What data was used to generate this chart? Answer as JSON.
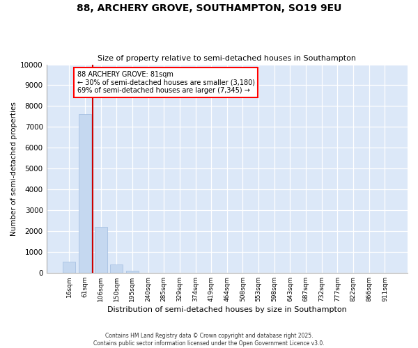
{
  "title1": "88, ARCHERY GROVE, SOUTHAMPTON, SO19 9EU",
  "title2": "Size of property relative to semi-detached houses in Southampton",
  "xlabel": "Distribution of semi-detached houses by size in Southampton",
  "ylabel": "Number of semi-detached properties",
  "categories": [
    "16sqm",
    "61sqm",
    "106sqm",
    "150sqm",
    "195sqm",
    "240sqm",
    "285sqm",
    "329sqm",
    "374sqm",
    "419sqm",
    "464sqm",
    "508sqm",
    "553sqm",
    "598sqm",
    "643sqm",
    "687sqm",
    "732sqm",
    "777sqm",
    "822sqm",
    "866sqm",
    "911sqm"
  ],
  "values": [
    520,
    7600,
    2200,
    380,
    100,
    0,
    0,
    0,
    0,
    0,
    0,
    0,
    0,
    0,
    0,
    0,
    0,
    0,
    0,
    0,
    0
  ],
  "bar_color": "#c5d8f0",
  "bar_edge_color": "#a0bce0",
  "vline_x": 1.5,
  "vline_color": "#cc0000",
  "annotation_text": "88 ARCHERY GROVE: 81sqm\n← 30% of semi-detached houses are smaller (3,180)\n69% of semi-detached houses are larger (7,345) →",
  "ylim": [
    0,
    10000
  ],
  "yticks": [
    0,
    1000,
    2000,
    3000,
    4000,
    5000,
    6000,
    7000,
    8000,
    9000,
    10000
  ],
  "footer": "Contains HM Land Registry data © Crown copyright and database right 2025.\nContains public sector information licensed under the Open Government Licence v3.0.",
  "bg_color": "#ffffff",
  "plot_bg_color": "#dce8f8"
}
